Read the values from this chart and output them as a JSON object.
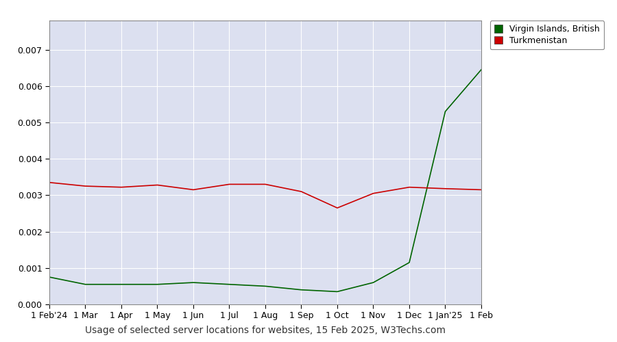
{
  "xlabel": "Usage of selected server locations for websites, 15 Feb 2025, W3Techs.com",
  "outer_background": "#ffffff",
  "plot_bg": "#dce0f0",
  "grid_color": "#ffffff",
  "legend_labels": [
    "Virgin Islands, British",
    "Turkmenistan"
  ],
  "line_colors": [
    "#006400",
    "#cc0000"
  ],
  "tick_labels": [
    "1 Feb'24",
    "1 Mar",
    "1 Apr",
    "1 May",
    "1 Jun",
    "1 Jul",
    "1 Aug",
    "1 Sep",
    "1 Oct",
    "1 Nov",
    "1 Dec",
    "1 Jan'25",
    "1 Feb"
  ],
  "virgin_islands_values": [
    0.00075,
    0.00055,
    0.00055,
    0.00055,
    0.0006,
    0.00055,
    0.0005,
    0.0004,
    0.00035,
    0.0006,
    0.00115,
    0.0053,
    0.00645
  ],
  "turkmenistan_values": [
    0.00335,
    0.00325,
    0.00322,
    0.00328,
    0.00315,
    0.0033,
    0.0033,
    0.0031,
    0.00265,
    0.00305,
    0.00322,
    0.00318,
    0.00315
  ],
  "ylim": [
    0,
    0.0078
  ],
  "yticks": [
    0,
    0.001,
    0.002,
    0.003,
    0.004,
    0.005,
    0.006,
    0.007
  ],
  "xlabel_fontsize": 10,
  "tick_fontsize": 9,
  "legend_fontsize": 9
}
